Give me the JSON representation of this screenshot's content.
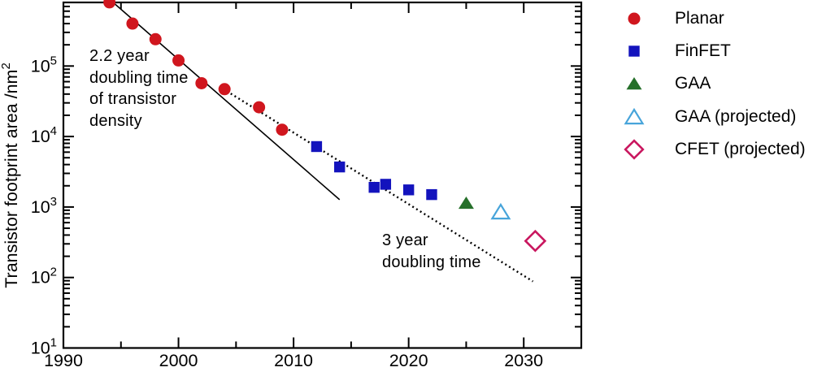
{
  "chart_data": {
    "type": "scatter",
    "title": "",
    "xlabel": "",
    "ylabel_base": "Transistor footprint area /nm",
    "ylabel_sup": "2",
    "x_axis": {
      "major_ticks": [
        1990,
        2000,
        2010,
        2020,
        2030
      ],
      "minor_ticks": [
        1995,
        2005,
        2015,
        2025
      ],
      "range": [
        1990,
        2035
      ]
    },
    "y_axis": {
      "scale": "log",
      "tick_exponents": [
        1,
        2,
        3,
        4,
        5
      ],
      "range_exponents": [
        1,
        5.9
      ]
    },
    "series": [
      {
        "name": "Planar",
        "marker": "circle",
        "filled": true,
        "color": "#d0161e",
        "points": [
          [
            1994,
            800000
          ],
          [
            1996,
            400000
          ],
          [
            1998,
            240000
          ],
          [
            2000,
            120000
          ],
          [
            2002,
            57000
          ],
          [
            2004,
            47000
          ],
          [
            2007,
            26000
          ],
          [
            2009,
            12500
          ]
        ]
      },
      {
        "name": "FinFET",
        "marker": "square",
        "filled": true,
        "color": "#1313bd",
        "points": [
          [
            2012,
            7200
          ],
          [
            2014,
            3700
          ],
          [
            2017,
            1900
          ],
          [
            2018,
            2100
          ],
          [
            2020,
            1750
          ],
          [
            2022,
            1500
          ]
        ]
      },
      {
        "name": "GAA",
        "marker": "triangle",
        "filled": true,
        "color": "#26702a",
        "points": [
          [
            2025,
            1140
          ]
        ]
      },
      {
        "name": "GAA (projected)",
        "marker": "triangle",
        "filled": false,
        "color": "#47a4da",
        "points": [
          [
            2028,
            850
          ]
        ]
      },
      {
        "name": "CFET (projected)",
        "marker": "diamond",
        "filled": false,
        "color": "#c9175f",
        "points": [
          [
            2031,
            330
          ]
        ]
      }
    ],
    "trend_lines": [
      {
        "style": "solid",
        "doubling_time_years": 2.2,
        "annotation": [
          "2.2 year",
          "doubling time",
          "of transistor",
          "density"
        ],
        "start": {
          "year": 1994.35,
          "value": 790000
        },
        "end": {
          "year": 2014.0,
          "value": 1270
        }
      },
      {
        "style": "dotted",
        "doubling_time_years": 3,
        "annotation": [
          "3 year",
          "doubling time"
        ],
        "start": {
          "year": 2004.2,
          "value": 44000
        },
        "end": {
          "year": 2030.8,
          "value": 88
        }
      }
    ]
  },
  "legend": {
    "items": [
      {
        "label": "Planar",
        "marker": "circle",
        "filled": true,
        "color": "#d0161e"
      },
      {
        "label": "FinFET",
        "marker": "square",
        "filled": true,
        "color": "#1313bd"
      },
      {
        "label": "GAA",
        "marker": "triangle",
        "filled": true,
        "color": "#26702a"
      },
      {
        "label": "GAA (projected)",
        "marker": "triangle",
        "filled": false,
        "color": "#47a4da"
      },
      {
        "label": "CFET (projected)",
        "marker": "diamond",
        "filled": false,
        "color": "#c9175f"
      }
    ]
  }
}
